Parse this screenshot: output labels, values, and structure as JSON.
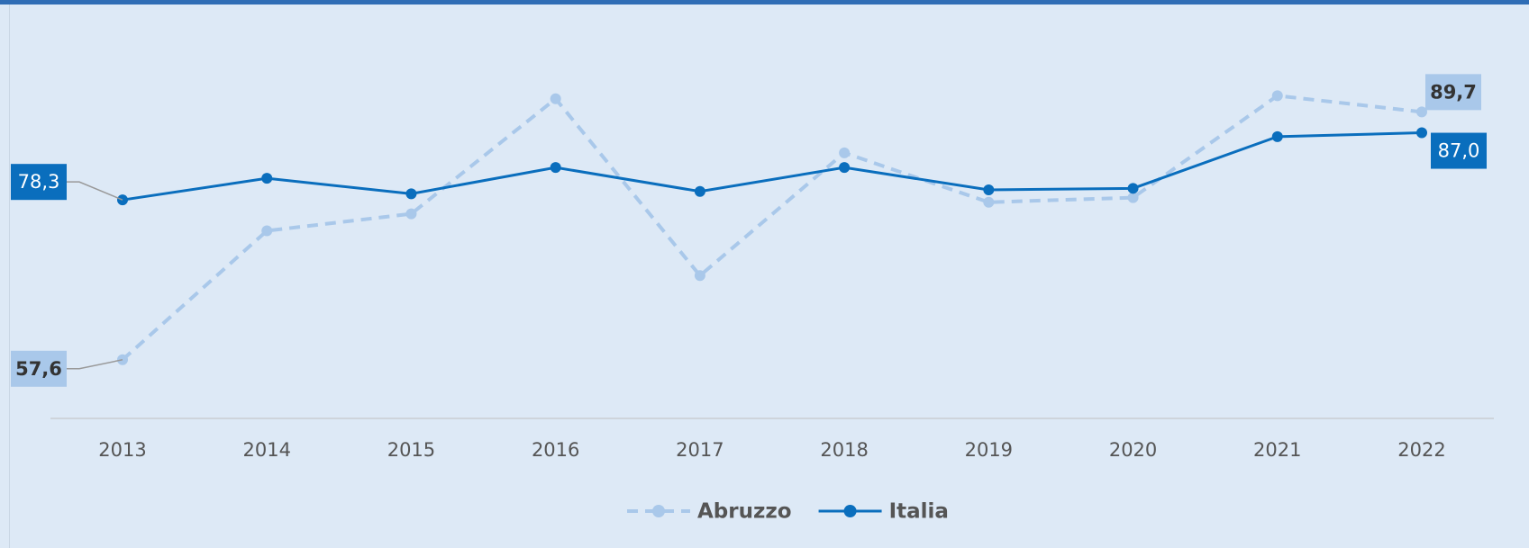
{
  "chart_data": {
    "type": "line",
    "categories": [
      "2013",
      "2014",
      "2015",
      "2016",
      "2017",
      "2018",
      "2019",
      "2020",
      "2021",
      "2022"
    ],
    "series": [
      {
        "name": "Abruzzo",
        "color": "#a9c8ea",
        "dashed": true,
        "values": [
          57.6,
          74.3,
          76.5,
          91.4,
          68.5,
          84.4,
          78.0,
          78.6,
          91.8,
          89.7
        ],
        "value_labels": [
          "57,6",
          null,
          null,
          null,
          null,
          null,
          null,
          null,
          null,
          "89,7"
        ]
      },
      {
        "name": "Italia",
        "color": "#0a6ebd",
        "dashed": false,
        "values": [
          78.3,
          81.1,
          79.1,
          82.5,
          79.4,
          82.5,
          79.6,
          79.8,
          86.5,
          87.0
        ],
        "value_labels": [
          "78,3",
          null,
          null,
          null,
          null,
          null,
          null,
          null,
          null,
          "87,0"
        ]
      }
    ],
    "ylim": [
      50,
      100
    ]
  }
}
